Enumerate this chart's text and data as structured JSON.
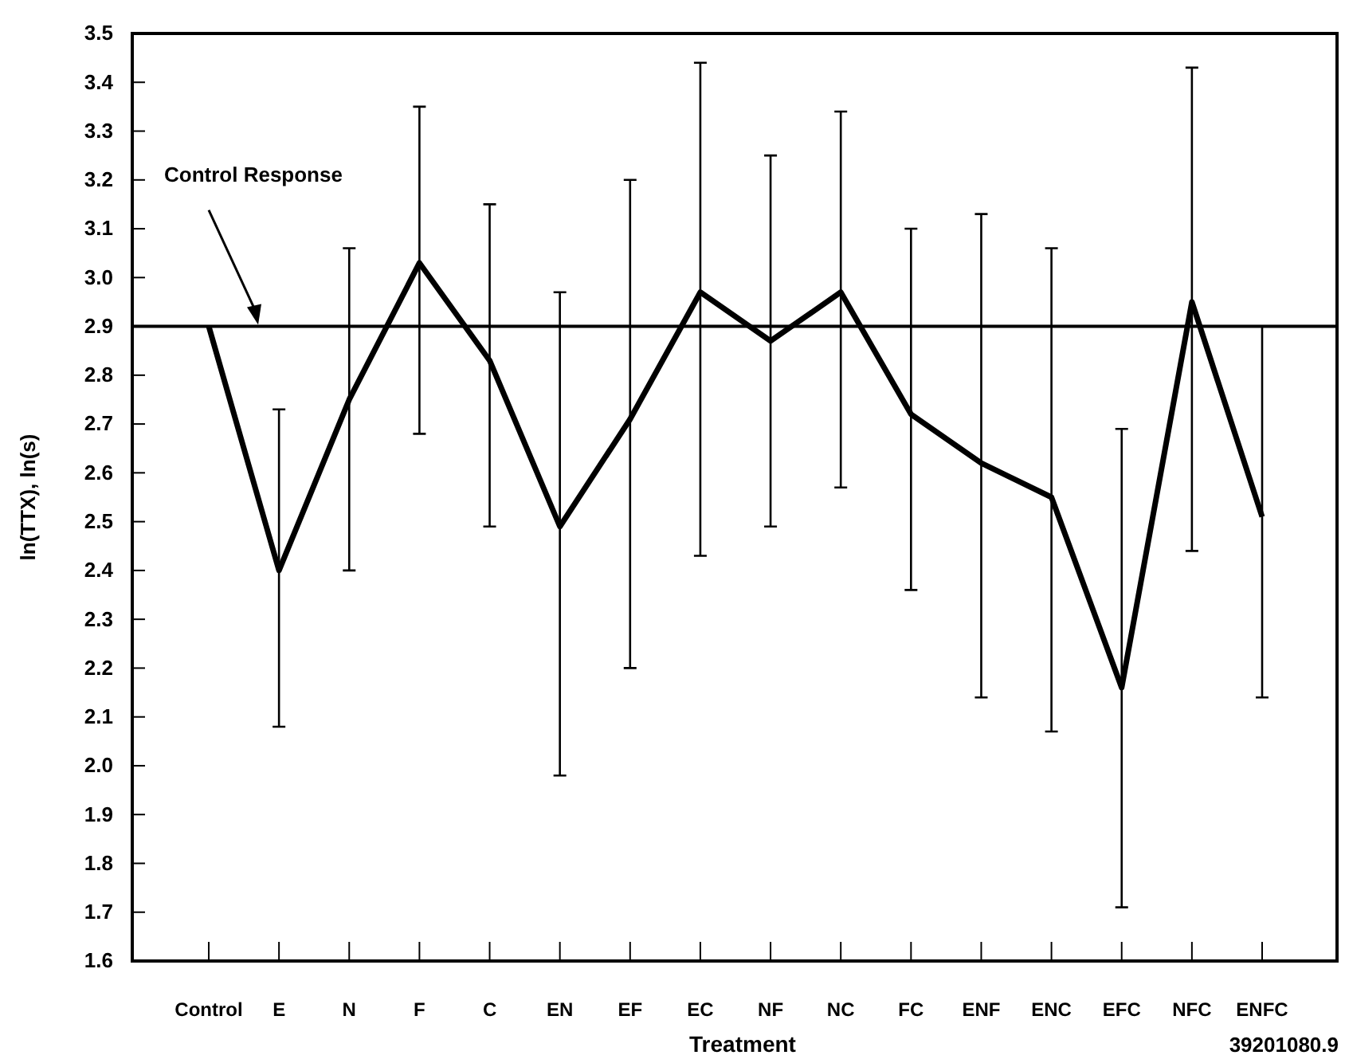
{
  "chart_data": {
    "type": "line",
    "xlabel": "Treatment",
    "ylabel": "ln(TTX), ln(s)",
    "categories": [
      "Control",
      "E",
      "N",
      "F",
      "C",
      "EN",
      "EF",
      "EC",
      "NF",
      "NC",
      "FC",
      "ENF",
      "ENC",
      "EFC",
      "NFC",
      "ENFC"
    ],
    "series": [
      {
        "color": "#000000",
        "values": [
          2.9,
          2.4,
          2.75,
          3.03,
          2.83,
          2.49,
          2.71,
          2.97,
          2.87,
          2.97,
          2.72,
          2.62,
          2.55,
          2.16,
          2.95,
          2.51
        ],
        "errors": [
          null,
          [
            2.08,
            2.73
          ],
          [
            2.4,
            3.06
          ],
          [
            2.68,
            3.35
          ],
          [
            2.49,
            3.15
          ],
          [
            1.98,
            2.97
          ],
          [
            2.2,
            3.2
          ],
          [
            2.43,
            3.44
          ],
          [
            2.49,
            3.25
          ],
          [
            2.57,
            3.34
          ],
          [
            2.36,
            3.1
          ],
          [
            2.14,
            3.13
          ],
          [
            2.07,
            3.06
          ],
          [
            1.71,
            2.69
          ],
          [
            2.44,
            3.43
          ],
          [
            2.14,
            2.9
          ]
        ]
      }
    ],
    "ylim": [
      1.6,
      3.5
    ],
    "yticks": [
      {
        "value": 1.6,
        "label": "1.6"
      },
      {
        "value": 1.7,
        "label": "1.7"
      },
      {
        "value": 1.8,
        "label": "1.8"
      },
      {
        "value": 1.9,
        "label": "1.9"
      },
      {
        "value": 2.0,
        "label": "2.0"
      },
      {
        "value": 2.1,
        "label": "2.1"
      },
      {
        "value": 2.2,
        "label": "2.2"
      },
      {
        "value": 2.3,
        "label": "2.3"
      },
      {
        "value": 2.4,
        "label": "2.4"
      },
      {
        "value": 2.5,
        "label": "2.5"
      },
      {
        "value": 2.6,
        "label": "2.6"
      },
      {
        "value": 2.7,
        "label": "2.7"
      },
      {
        "value": 2.8,
        "label": "2.8"
      },
      {
        "value": 2.9,
        "label": "2.9"
      },
      {
        "value": 3.0,
        "label": "3.0"
      },
      {
        "value": 3.1,
        "label": "3.1"
      },
      {
        "value": 3.2,
        "label": "3.2"
      },
      {
        "value": 3.3,
        "label": "3.3"
      },
      {
        "value": 3.4,
        "label": "3.4"
      },
      {
        "value": 3.5,
        "label": "3.5"
      }
    ],
    "ref_lines": [
      {
        "axis": "y",
        "value": 2.9,
        "label": "Control Response",
        "color": "#000000"
      }
    ],
    "annotations": [
      "39201080.9"
    ],
    "grid": false,
    "marker": "none",
    "line_style": "solid"
  }
}
